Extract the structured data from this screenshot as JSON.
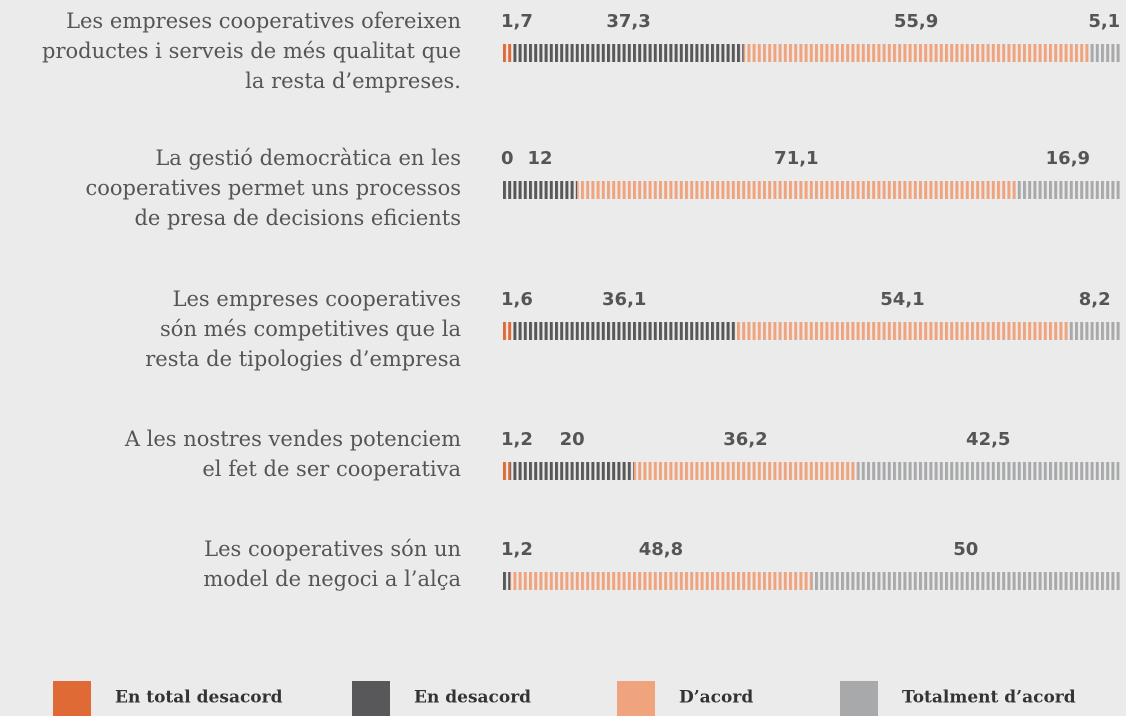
{
  "chart_data": {
    "type": "stacked_bar_horizontal",
    "categories": [
      "Les empreses cooperatives ofereixen\nproductes i serveis de més qualitat que\nla resta d’empreses.",
      "La gestió democràtica en les\ncooperatives permet uns processos\nde presa de decisions eficients",
      "Les empreses cooperatives\nsón més competitives que la\nresta de tipologies d’empresa",
      "A les nostres vendes potenciem\nel fet de ser cooperativa",
      "Les cooperatives són un\nmodel de negoci a l’alça"
    ],
    "series": [
      {
        "name": "En total desacord",
        "color": "#e06a36",
        "values": [
          1.7,
          0,
          1.6,
          1.2,
          null
        ],
        "value_labels": [
          "1,7",
          "0",
          "1,6",
          "1,2",
          null
        ]
      },
      {
        "name": "En desacord",
        "color": "#58585a",
        "values": [
          37.3,
          12,
          36.1,
          20,
          1.2
        ],
        "value_labels": [
          "37,3",
          "12",
          "36,1",
          "20",
          "1,2"
        ]
      },
      {
        "name": "D’acord",
        "color": "#efa47e",
        "values": [
          55.9,
          71.1,
          54.1,
          36.2,
          48.8
        ],
        "value_labels": [
          "55,9",
          "71,1",
          "54,1",
          "36,2",
          "48,8"
        ]
      },
      {
        "name": "Totalment d’acord",
        "color": "#a8a9ab",
        "values": [
          5.1,
          16.9,
          8.2,
          42.5,
          50
        ],
        "value_labels": [
          "5,1",
          "16,9",
          "8,2",
          "42,5",
          "50"
        ]
      }
    ],
    "xlim": [
      0,
      100
    ]
  }
}
